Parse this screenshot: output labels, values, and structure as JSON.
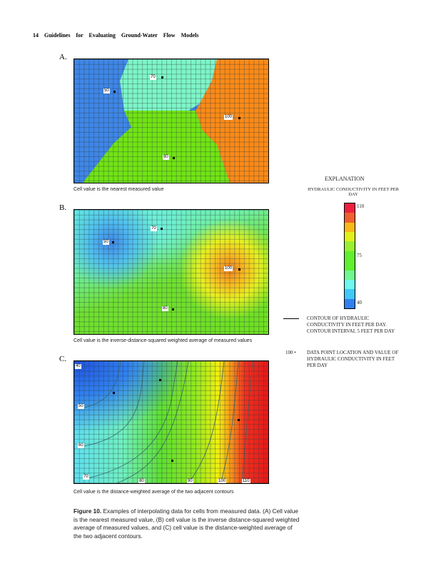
{
  "header": "14 Guidelines for Evaluating Ground-Water Flow Models",
  "panels": [
    {
      "letter": "A.",
      "caption": "Cell value is the nearest measured value",
      "points": [
        "50",
        "70",
        "100",
        "80"
      ]
    },
    {
      "letter": "B.",
      "caption": "Cell value is the inverse-distance-squared weighted average of measured values",
      "points": [
        "50",
        "70",
        "100",
        "80"
      ]
    },
    {
      "letter": "C.",
      "caption": "Cell value is the distance-weighted average of the two adjacent contours",
      "contours": [
        "40",
        "50",
        "60",
        "70",
        "80",
        "90",
        "100",
        "110"
      ]
    }
  ],
  "legend": {
    "title": "EXPLANATION",
    "scale_title": "HYDRAULIC CONDUCTIVITY IN FEET PER DAY",
    "scale_ticks": [
      "110",
      "75",
      "40"
    ],
    "colors": [
      "#ee2040",
      "#f06030",
      "#f8b818",
      "#e0f018",
      "#98f030",
      "#60f030",
      "#60f030",
      "#70f890",
      "#70f8f0",
      "#40c8f8",
      "#3080f0"
    ],
    "contour_text": "CONTOUR OF HYDRAULIC CONDUCTIVITY IN FEET PER DAY. CONTOUR INTERVAL 5 FEET PER DAY",
    "point_symbol": "100 •",
    "point_text": "DATA POINT LOCATION AND VALUE OF HYDRAULIC CONDUCTIVITY IN FEET PER DAY"
  },
  "figure_caption": {
    "label": "Figure 10.",
    "text": "Examples of interpolating data for cells from measured data. (A) Cell value is the nearest measured value, (B) cell value is the inverse distance-squared weighted average of measured values, and (C) cell value is the distance-weighted average of the two adjacent contours."
  }
}
